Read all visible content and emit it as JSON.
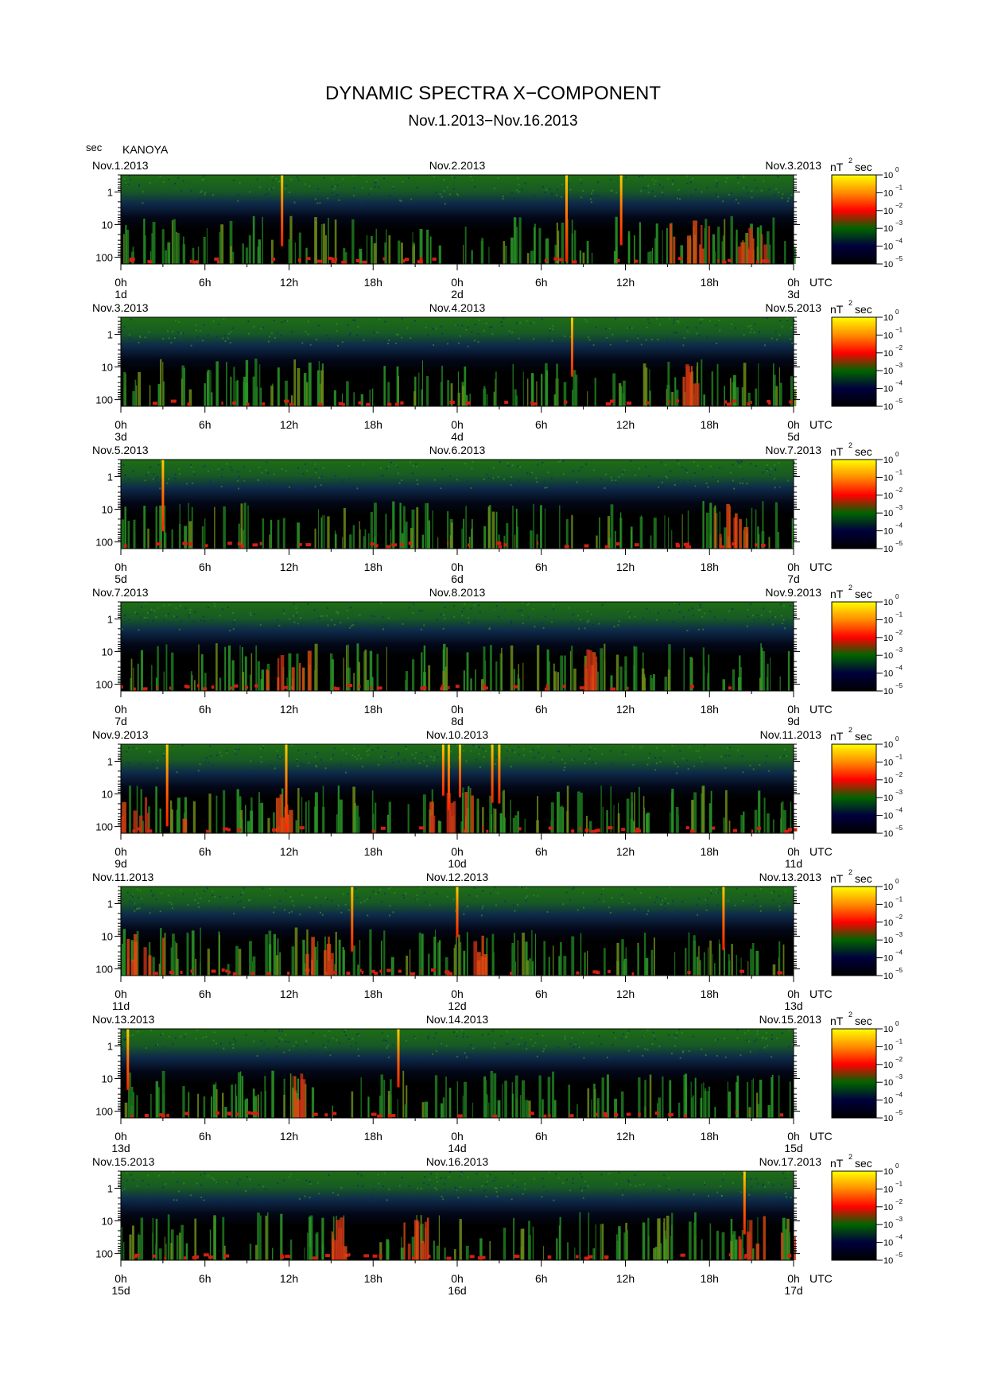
{
  "title": "DYNAMIC SPECTRA X−COMPONENT",
  "subtitle": "Nov.1.2013−Nov.16.2013",
  "y_unit": "sec",
  "station": "KANOYA",
  "colorbar_unit": "nT",
  "colorbar_unit_exp": "2",
  "colorbar_unit_suffix": "sec",
  "chart_data": {
    "type": "heatmap",
    "x_tick_labels": [
      "0h",
      "6h",
      "12h",
      "18h",
      "0h",
      "6h",
      "12h",
      "18h",
      "0h"
    ],
    "x_suffix": "UTC",
    "y_tick_labels": [
      "1",
      "10",
      "100"
    ],
    "y_scale": "log",
    "y_range": [
      0.3,
      160
    ],
    "colorbar_labels": [
      "10",
      "10",
      "10",
      "10",
      "10",
      "10"
    ],
    "colorbar_exponents": [
      "0",
      "−1",
      "−2",
      "−3",
      "−4",
      "−5"
    ],
    "colorbar_range_log10": [
      -5,
      0
    ],
    "colormap": [
      "#ffff00",
      "#ff8c00",
      "#ff0000",
      "#006400",
      "#00003c",
      "#000000"
    ],
    "panels": [
      {
        "date_left": "Nov.1.2013",
        "date_mid": "Nov.2.2013",
        "date_right": "Nov.3.2013",
        "day_left": "1d",
        "day_mid": "2d",
        "day_right": "3d",
        "impulses_hours": [
          11.5,
          31.8,
          35.7
        ],
        "enhanced_hours": [
          [
            39,
            42
          ],
          [
            44,
            46
          ]
        ]
      },
      {
        "date_left": "Nov.3.2013",
        "date_mid": "Nov.4.2013",
        "date_right": "Nov.5.2013",
        "day_left": "3d",
        "day_mid": "4d",
        "day_right": "5d",
        "impulses_hours": [
          32.2
        ],
        "enhanced_hours": [
          [
            40,
            41
          ]
        ]
      },
      {
        "date_left": "Nov.5.2013",
        "date_mid": "Nov.6.2013",
        "date_right": "Nov.7.2013",
        "day_left": "5d",
        "day_mid": "6d",
        "day_right": "7d",
        "impulses_hours": [
          3.0
        ],
        "enhanced_hours": [
          [
            42,
            45
          ]
        ]
      },
      {
        "date_left": "Nov.7.2013",
        "date_mid": "Nov.8.2013",
        "date_right": "Nov.9.2013",
        "day_left": "7d",
        "day_mid": "8d",
        "day_right": "9d",
        "impulses_hours": [],
        "enhanced_hours": [
          [
            10,
            14
          ],
          [
            33,
            34
          ]
        ]
      },
      {
        "date_left": "Nov.9.2013",
        "date_mid": "Nov.10.2013",
        "date_right": "Nov.11.2013",
        "day_left": "9d",
        "day_mid": "10d",
        "day_right": "11d",
        "impulses_hours": [
          3.3,
          11.8,
          23.0,
          23.4,
          24.2,
          26.5,
          27.0
        ],
        "enhanced_hours": [
          [
            0,
            6
          ],
          [
            11,
            13
          ],
          [
            22,
            25
          ]
        ]
      },
      {
        "date_left": "Nov.11.2013",
        "date_mid": "Nov.12.2013",
        "date_right": "Nov.13.2013",
        "day_left": "11d",
        "day_mid": "12d",
        "day_right": "13d",
        "impulses_hours": [
          16.5,
          24.0,
          43.0
        ],
        "enhanced_hours": [
          [
            0,
            4
          ],
          [
            13,
            15
          ],
          [
            25,
            26
          ]
        ]
      },
      {
        "date_left": "Nov.13.2013",
        "date_mid": "Nov.14.2013",
        "date_right": "Nov.15.2013",
        "day_left": "13d",
        "day_mid": "14d",
        "day_right": "15d",
        "impulses_hours": [
          0.5,
          19.8
        ],
        "enhanced_hours": [
          [
            12,
            13
          ]
        ]
      },
      {
        "date_left": "Nov.15.2013",
        "date_mid": "Nov.16.2013",
        "date_right": "Nov.17.2013",
        "day_left": "15d",
        "day_mid": "16d",
        "day_right": "17d",
        "impulses_hours": [
          44.5
        ],
        "enhanced_hours": [
          [
            15,
            16
          ],
          [
            20,
            22
          ],
          [
            44,
            48
          ]
        ]
      }
    ]
  }
}
